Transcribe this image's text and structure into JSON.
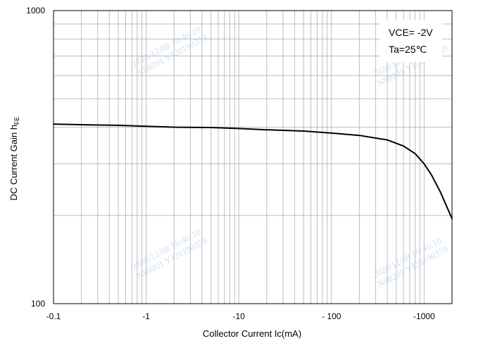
{
  "chart_data": {
    "type": "line",
    "title": "",
    "xlabel": "Collector Current   Ic(mA)",
    "ylabel_main": "DC Current Gain  h",
    "ylabel_sub": "FE",
    "x_scale": "log",
    "y_scale": "log",
    "xlim": [
      0.1,
      2000
    ],
    "ylim": [
      100,
      1000
    ],
    "x_tick_values": [
      0.1,
      1,
      10,
      100,
      1000
    ],
    "x_tick_labels": [
      "-0.1",
      "-1",
      "-10",
      "- 100",
      "-1000"
    ],
    "y_tick_values": [
      100,
      1000
    ],
    "y_tick_labels": [
      "100",
      "1000"
    ],
    "grid": true,
    "legend": "none",
    "annotations": [
      "VCE= -2V",
      "Ta=25℃"
    ],
    "watermarks": [
      "2020/12/08  16:46:10",
      "N80201  YJ20190359"
    ],
    "series": [
      {
        "color": "#000000",
        "x": [
          0.1,
          0.2,
          0.5,
          1,
          2,
          5,
          10,
          20,
          50,
          100,
          200,
          400,
          600,
          800,
          1000,
          1200,
          1500,
          2000
        ],
        "y": [
          410,
          408,
          406,
          403,
          400,
          399,
          396,
          392,
          388,
          382,
          375,
          362,
          345,
          325,
          300,
          275,
          240,
          195
        ]
      }
    ]
  }
}
